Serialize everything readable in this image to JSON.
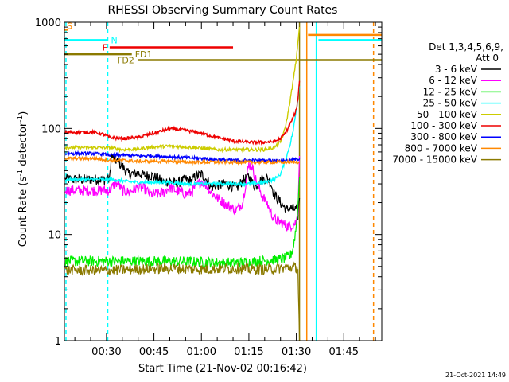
{
  "chart_data": {
    "type": "line",
    "title": "RHESSI Observing Summary Count Rates",
    "xlabel": "Start Time (21-Nov-02 00:16:42)",
    "ylabel": "Count Rate (s⁻¹ detector⁻¹)",
    "ylabel_parts": {
      "main": "Count Rate (s",
      "exp1": "-1",
      "mid": " detector",
      "exp2": "-1",
      "end": ")"
    },
    "yscale": "log",
    "ylim": [
      1,
      1000
    ],
    "xlim_minutes": [
      16.7,
      117
    ],
    "x_unit": "minutes after 00:00 UT",
    "xticks": [
      {
        "label": "00:30",
        "minute": 30
      },
      {
        "label": "00:45",
        "minute": 45
      },
      {
        "label": "01:00",
        "minute": 60
      },
      {
        "label": "01:15",
        "minute": 75
      },
      {
        "label": "01:30",
        "minute": 90
      },
      {
        "label": "01:45",
        "minute": 105
      }
    ],
    "yticks": [
      {
        "label": "1",
        "value": 1
      },
      {
        "label": "10",
        "value": 10
      },
      {
        "label": "100",
        "value": 100
      },
      {
        "label": "1000",
        "value": 1000
      }
    ],
    "legend_header": [
      "Det 1,3,4,5,6,9,",
      "Att 0"
    ],
    "legend_placement": "right",
    "timestamp": "21-Oct-2021 14:49",
    "series": [
      {
        "name": "3 - 6 keV",
        "color": "#000000",
        "x": [
          17,
          26,
          29,
          31,
          31.5,
          33,
          35,
          37,
          40,
          42,
          44,
          46,
          48,
          50,
          52,
          55,
          57,
          58,
          60,
          62,
          63,
          65,
          68,
          71,
          73,
          75,
          76,
          77,
          79,
          81,
          82,
          83,
          85,
          87,
          88,
          90,
          90.5,
          91
        ],
        "y": [
          33,
          33,
          33,
          33,
          55,
          50,
          44,
          37,
          38,
          36,
          36,
          34,
          31,
          32,
          30,
          33,
          32,
          35,
          37,
          32,
          28,
          29,
          30,
          27,
          32,
          35,
          31,
          28,
          33,
          34,
          30,
          24,
          20,
          17,
          18,
          17,
          15,
          22
        ]
      },
      {
        "name": "6 - 12 keV",
        "color": "#ff00ff",
        "x": [
          17,
          26,
          29,
          31,
          31.5,
          33,
          35,
          37,
          40,
          42,
          44,
          46,
          48,
          50,
          52,
          55,
          57,
          58,
          60,
          62,
          63,
          65,
          68,
          71,
          73,
          75,
          76,
          77,
          79,
          81,
          82,
          83,
          85,
          87,
          88,
          90,
          90.5,
          91
        ],
        "y": [
          26,
          26,
          26,
          26,
          27,
          31,
          26,
          25,
          28,
          27,
          24,
          24,
          25,
          28,
          26,
          24,
          25,
          28,
          32,
          28,
          25,
          22,
          19,
          17,
          20,
          46,
          44,
          34,
          24,
          19,
          16,
          14,
          13,
          12,
          12,
          13,
          17,
          55
        ]
      },
      {
        "name": "12 - 25 keV",
        "color": "#00ee00",
        "x": [
          17,
          26,
          29,
          31,
          40,
          50,
          60,
          70,
          75,
          80,
          85,
          88,
          89,
          90,
          90.5,
          91
        ],
        "y": [
          5.6,
          5.6,
          5.6,
          5.6,
          5.6,
          5.6,
          5.5,
          5.4,
          5.5,
          5.7,
          5.8,
          6.2,
          7.5,
          12,
          18,
          35
        ]
      },
      {
        "name": "25 - 50 keV",
        "color": "#00ffff",
        "x": [
          17,
          26,
          29,
          31,
          35,
          40,
          45,
          50,
          55,
          60,
          65,
          70,
          75,
          80,
          83,
          85,
          86,
          87,
          88,
          89,
          90,
          90.5,
          91
        ],
        "y": [
          33,
          33,
          33,
          33,
          32,
          31,
          31,
          31,
          30,
          30,
          30,
          30,
          30,
          31,
          33,
          37,
          45,
          55,
          70,
          95,
          150,
          190,
          250
        ]
      },
      {
        "name": "50 - 100 keV",
        "color": "#cccc00",
        "x": [
          17,
          26,
          29,
          31,
          35,
          40,
          45,
          50,
          55,
          60,
          65,
          70,
          75,
          80,
          83,
          85,
          86,
          87,
          88,
          89,
          90,
          90.5,
          91
        ],
        "y": [
          66,
          66,
          66,
          66,
          63,
          64,
          67,
          68,
          67,
          65,
          63,
          63,
          63,
          63,
          66,
          74,
          90,
          120,
          180,
          280,
          450,
          650,
          900
        ]
      },
      {
        "name": "100 - 300 keV",
        "color": "#ee0000",
        "x": [
          17,
          26,
          29,
          31,
          35,
          40,
          45,
          50,
          55,
          60,
          65,
          70,
          75,
          80,
          83,
          85,
          86,
          87,
          88,
          89,
          90,
          90.5,
          91
        ],
        "y": [
          92,
          92,
          88,
          82,
          80,
          82,
          90,
          100,
          96,
          90,
          82,
          76,
          74,
          74,
          75,
          80,
          86,
          95,
          110,
          125,
          150,
          190,
          280
        ]
      },
      {
        "name": "300 - 800 keV",
        "color": "#0000ff",
        "x": [
          17,
          26,
          29,
          31,
          35,
          40,
          45,
          50,
          55,
          60,
          65,
          70,
          75,
          80,
          85,
          88,
          90,
          91
        ],
        "y": [
          58,
          58,
          57,
          56,
          56,
          55,
          55,
          54,
          53,
          52,
          51,
          50,
          50,
          50,
          50,
          50,
          51,
          52
        ]
      },
      {
        "name": "800 - 7000 keV",
        "color": "#ff8800",
        "x": [
          17,
          26,
          29,
          31,
          35,
          40,
          45,
          50,
          55,
          60,
          65,
          70,
          75,
          80,
          85,
          88,
          90,
          91
        ],
        "y": [
          52,
          52,
          51,
          50,
          50,
          49,
          49,
          49,
          48,
          48,
          48,
          48,
          48,
          48,
          48,
          48,
          48,
          48
        ]
      },
      {
        "name": "7000 - 15000 keV",
        "color": "#8b7a00",
        "x": [
          17,
          26,
          29,
          31,
          40,
          50,
          60,
          70,
          75,
          80,
          85,
          88,
          89,
          90,
          90.5,
          91
        ],
        "y": [
          4.6,
          4.6,
          4.6,
          4.6,
          4.7,
          4.8,
          4.7,
          4.8,
          4.7,
          4.7,
          4.8,
          4.9,
          4.9,
          4.9,
          4.9,
          1
        ]
      }
    ],
    "state_bars": [
      {
        "label": "S",
        "color": "#ff8800",
        "x": [
          16.7,
          17.8
        ],
        "y": 850,
        "style": "solid"
      },
      {
        "label": "N",
        "color": "#00ffff",
        "x": [
          16.7,
          30.5
        ],
        "y": 680,
        "style": "solid"
      },
      {
        "label": "F",
        "color": "#ee0000",
        "x": [
          31,
          70
        ],
        "y": 580,
        "style": "solid"
      },
      {
        "label": "FD1",
        "color": "#8b7a00",
        "x": [
          16.7,
          38
        ],
        "y": 500,
        "style": "solid"
      },
      {
        "label": "FD2",
        "color": "#8b7a00",
        "x": [
          40,
          117
        ],
        "y": 440,
        "style": "solid"
      },
      {
        "label": "",
        "color": "#ff8800",
        "x": [
          93.7,
          117
        ],
        "y": 760,
        "style": "solid"
      },
      {
        "label": "",
        "color": "#00ffff",
        "x": [
          97,
          117
        ],
        "y": 680,
        "style": "solid"
      }
    ],
    "markers": [
      {
        "color": "#00ffff",
        "x": 17.2,
        "style": "dashed"
      },
      {
        "color": "#00ffff",
        "x": 30.4,
        "style": "dashed"
      },
      {
        "color": "#8b7a00",
        "x": 91,
        "style": "solid"
      },
      {
        "color": "#ff8800",
        "x": 93.3,
        "style": "solid"
      },
      {
        "color": "#00ffff",
        "x": 96.3,
        "style": "solid"
      },
      {
        "color": "#ff8800",
        "x": 114.4,
        "style": "dashed"
      }
    ]
  }
}
